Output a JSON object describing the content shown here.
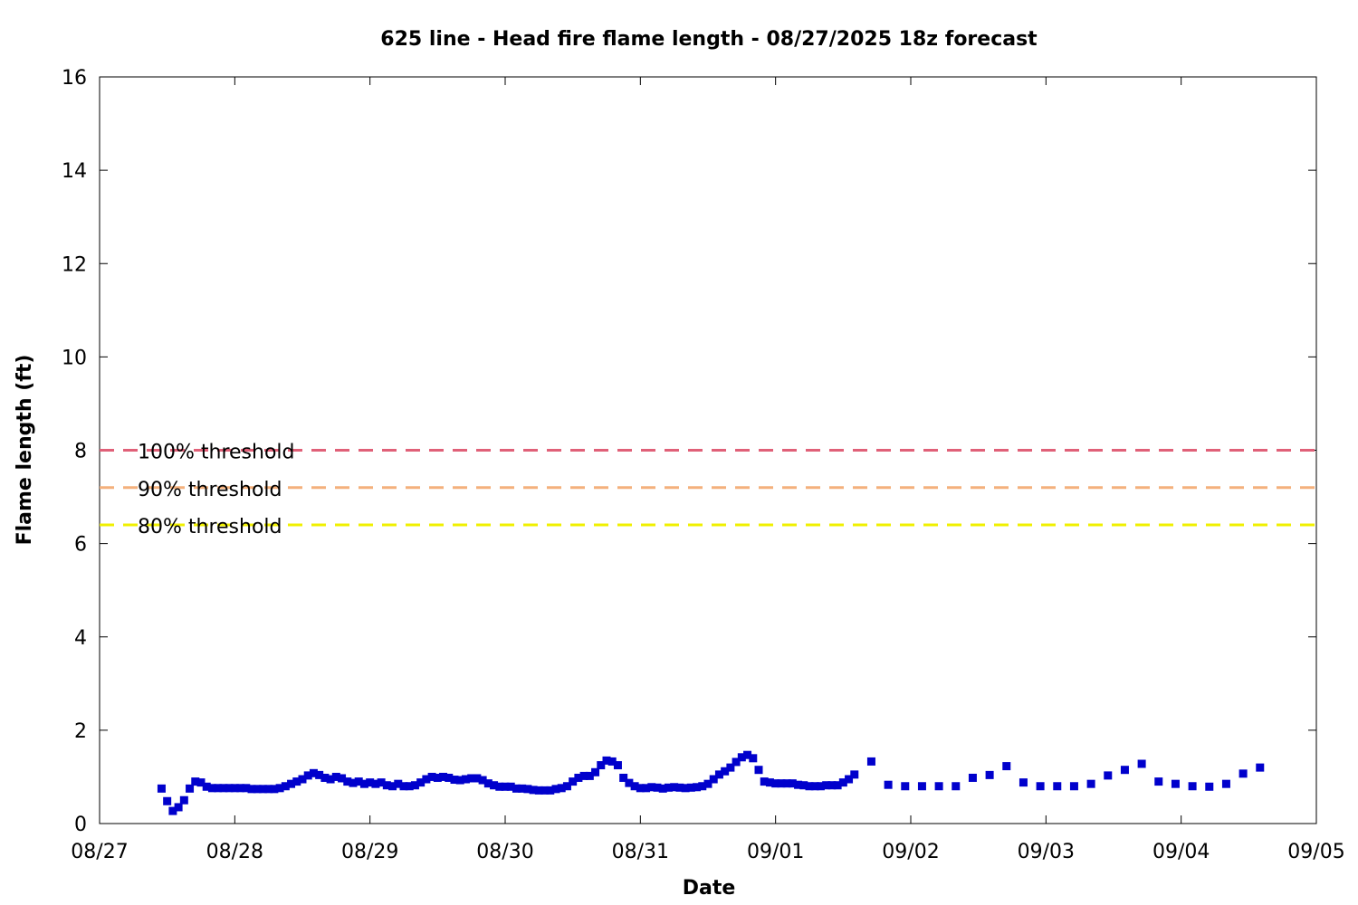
{
  "chart_data": {
    "type": "scatter",
    "title": "625 line - Head fire flame length - 08/27/2025 18z forecast",
    "xlabel": "Date",
    "ylabel": "Flame length (ft)",
    "x_axis": {
      "kind": "date",
      "range": [
        "2025-08-27",
        "2025-09-05"
      ],
      "tick_labels": [
        "08/27",
        "08/28",
        "08/29",
        "08/30",
        "08/31",
        "09/01",
        "09/02",
        "09/03",
        "09/04",
        "09/05"
      ]
    },
    "y_axis": {
      "range": [
        0,
        16
      ],
      "tick_labels": [
        "0",
        "2",
        "4",
        "6",
        "8",
        "10",
        "12",
        "14",
        "16"
      ]
    },
    "grid": false,
    "colors": {
      "points": "#0000cc",
      "threshold_100": "#e06078",
      "threshold_90": "#f4b07c",
      "threshold_80": "#f0f000"
    },
    "thresholds": [
      {
        "label": "100% threshold",
        "value": 8.0
      },
      {
        "label": "90% threshold",
        "value": 7.2
      },
      {
        "label": "80% threshold",
        "value": 6.4
      }
    ],
    "series": [
      {
        "marker": "square",
        "points": [
          [
            "2025-08-27 11:00",
            0.75
          ],
          [
            "2025-08-27 12:00",
            0.48
          ],
          [
            "2025-08-27 13:00",
            0.27
          ],
          [
            "2025-08-27 14:00",
            0.35
          ],
          [
            "2025-08-27 15:00",
            0.5
          ],
          [
            "2025-08-27 16:00",
            0.75
          ],
          [
            "2025-08-27 17:00",
            0.9
          ],
          [
            "2025-08-27 18:00",
            0.88
          ],
          [
            "2025-08-27 19:00",
            0.79
          ],
          [
            "2025-08-27 20:00",
            0.76
          ],
          [
            "2025-08-27 21:00",
            0.76
          ],
          [
            "2025-08-27 22:00",
            0.76
          ],
          [
            "2025-08-27 23:00",
            0.76
          ],
          [
            "2025-08-28 00:00",
            0.76
          ],
          [
            "2025-08-28 01:00",
            0.76
          ],
          [
            "2025-08-28 02:00",
            0.76
          ],
          [
            "2025-08-28 03:00",
            0.74
          ],
          [
            "2025-08-28 04:00",
            0.74
          ],
          [
            "2025-08-28 05:00",
            0.74
          ],
          [
            "2025-08-28 06:00",
            0.74
          ],
          [
            "2025-08-28 07:00",
            0.74
          ],
          [
            "2025-08-28 08:00",
            0.76
          ],
          [
            "2025-08-28 09:00",
            0.8
          ],
          [
            "2025-08-28 10:00",
            0.85
          ],
          [
            "2025-08-28 11:00",
            0.9
          ],
          [
            "2025-08-28 12:00",
            0.95
          ],
          [
            "2025-08-28 13:00",
            1.03
          ],
          [
            "2025-08-28 14:00",
            1.08
          ],
          [
            "2025-08-28 15:00",
            1.04
          ],
          [
            "2025-08-28 16:00",
            0.98
          ],
          [
            "2025-08-28 17:00",
            0.95
          ],
          [
            "2025-08-28 18:00",
            1.0
          ],
          [
            "2025-08-28 19:00",
            0.97
          ],
          [
            "2025-08-28 20:00",
            0.9
          ],
          [
            "2025-08-28 21:00",
            0.87
          ],
          [
            "2025-08-28 22:00",
            0.9
          ],
          [
            "2025-08-28 23:00",
            0.85
          ],
          [
            "2025-08-29 00:00",
            0.88
          ],
          [
            "2025-08-29 01:00",
            0.85
          ],
          [
            "2025-08-29 02:00",
            0.88
          ],
          [
            "2025-08-29 03:00",
            0.82
          ],
          [
            "2025-08-29 04:00",
            0.8
          ],
          [
            "2025-08-29 05:00",
            0.85
          ],
          [
            "2025-08-29 06:00",
            0.8
          ],
          [
            "2025-08-29 07:00",
            0.8
          ],
          [
            "2025-08-29 08:00",
            0.82
          ],
          [
            "2025-08-29 09:00",
            0.88
          ],
          [
            "2025-08-29 10:00",
            0.95
          ],
          [
            "2025-08-29 11:00",
            1.0
          ],
          [
            "2025-08-29 12:00",
            0.98
          ],
          [
            "2025-08-29 13:00",
            1.0
          ],
          [
            "2025-08-29 14:00",
            0.98
          ],
          [
            "2025-08-29 15:00",
            0.94
          ],
          [
            "2025-08-29 16:00",
            0.93
          ],
          [
            "2025-08-29 17:00",
            0.95
          ],
          [
            "2025-08-29 18:00",
            0.97
          ],
          [
            "2025-08-29 19:00",
            0.97
          ],
          [
            "2025-08-29 20:00",
            0.93
          ],
          [
            "2025-08-29 21:00",
            0.86
          ],
          [
            "2025-08-29 22:00",
            0.82
          ],
          [
            "2025-08-29 23:00",
            0.79
          ],
          [
            "2025-08-30 00:00",
            0.79
          ],
          [
            "2025-08-30 01:00",
            0.79
          ],
          [
            "2025-08-30 02:00",
            0.75
          ],
          [
            "2025-08-30 03:00",
            0.75
          ],
          [
            "2025-08-30 04:00",
            0.74
          ],
          [
            "2025-08-30 05:00",
            0.72
          ],
          [
            "2025-08-30 06:00",
            0.71
          ],
          [
            "2025-08-30 07:00",
            0.71
          ],
          [
            "2025-08-30 08:00",
            0.71
          ],
          [
            "2025-08-30 09:00",
            0.74
          ],
          [
            "2025-08-30 10:00",
            0.76
          ],
          [
            "2025-08-30 11:00",
            0.8
          ],
          [
            "2025-08-30 12:00",
            0.9
          ],
          [
            "2025-08-30 13:00",
            0.98
          ],
          [
            "2025-08-30 14:00",
            1.02
          ],
          [
            "2025-08-30 15:00",
            1.02
          ],
          [
            "2025-08-30 16:00",
            1.1
          ],
          [
            "2025-08-30 17:00",
            1.25
          ],
          [
            "2025-08-30 18:00",
            1.35
          ],
          [
            "2025-08-30 19:00",
            1.33
          ],
          [
            "2025-08-30 20:00",
            1.25
          ],
          [
            "2025-08-30 21:00",
            0.98
          ],
          [
            "2025-08-30 22:00",
            0.87
          ],
          [
            "2025-08-30 23:00",
            0.8
          ],
          [
            "2025-08-31 00:00",
            0.76
          ],
          [
            "2025-08-31 01:00",
            0.76
          ],
          [
            "2025-08-31 02:00",
            0.78
          ],
          [
            "2025-08-31 03:00",
            0.77
          ],
          [
            "2025-08-31 04:00",
            0.75
          ],
          [
            "2025-08-31 05:00",
            0.77
          ],
          [
            "2025-08-31 06:00",
            0.78
          ],
          [
            "2025-08-31 07:00",
            0.77
          ],
          [
            "2025-08-31 08:00",
            0.76
          ],
          [
            "2025-08-31 09:00",
            0.77
          ],
          [
            "2025-08-31 10:00",
            0.78
          ],
          [
            "2025-08-31 11:00",
            0.8
          ],
          [
            "2025-08-31 12:00",
            0.85
          ],
          [
            "2025-08-31 13:00",
            0.95
          ],
          [
            "2025-08-31 14:00",
            1.05
          ],
          [
            "2025-08-31 15:00",
            1.12
          ],
          [
            "2025-08-31 16:00",
            1.2
          ],
          [
            "2025-08-31 17:00",
            1.32
          ],
          [
            "2025-08-31 18:00",
            1.42
          ],
          [
            "2025-08-31 19:00",
            1.47
          ],
          [
            "2025-08-31 20:00",
            1.4
          ],
          [
            "2025-08-31 21:00",
            1.15
          ],
          [
            "2025-08-31 22:00",
            0.9
          ],
          [
            "2025-08-31 23:00",
            0.88
          ],
          [
            "2025-09-01 00:00",
            0.86
          ],
          [
            "2025-09-01 01:00",
            0.86
          ],
          [
            "2025-09-01 02:00",
            0.86
          ],
          [
            "2025-09-01 03:00",
            0.86
          ],
          [
            "2025-09-01 04:00",
            0.83
          ],
          [
            "2025-09-01 05:00",
            0.82
          ],
          [
            "2025-09-01 06:00",
            0.8
          ],
          [
            "2025-09-01 07:00",
            0.8
          ],
          [
            "2025-09-01 08:00",
            0.8
          ],
          [
            "2025-09-01 09:00",
            0.82
          ],
          [
            "2025-09-01 10:00",
            0.82
          ],
          [
            "2025-09-01 11:00",
            0.82
          ],
          [
            "2025-09-01 12:00",
            0.88
          ],
          [
            "2025-09-01 13:00",
            0.95
          ],
          [
            "2025-09-01 14:00",
            1.05
          ],
          [
            "2025-09-01 17:00",
            1.33
          ],
          [
            "2025-09-01 20:00",
            0.83
          ],
          [
            "2025-09-01 23:00",
            0.8
          ],
          [
            "2025-09-02 02:00",
            0.8
          ],
          [
            "2025-09-02 05:00",
            0.8
          ],
          [
            "2025-09-02 08:00",
            0.8
          ],
          [
            "2025-09-02 11:00",
            0.98
          ],
          [
            "2025-09-02 14:00",
            1.04
          ],
          [
            "2025-09-02 17:00",
            1.23
          ],
          [
            "2025-09-02 20:00",
            0.88
          ],
          [
            "2025-09-02 23:00",
            0.8
          ],
          [
            "2025-09-03 02:00",
            0.8
          ],
          [
            "2025-09-03 05:00",
            0.8
          ],
          [
            "2025-09-03 08:00",
            0.85
          ],
          [
            "2025-09-03 11:00",
            1.03
          ],
          [
            "2025-09-03 14:00",
            1.15
          ],
          [
            "2025-09-03 17:00",
            1.28
          ],
          [
            "2025-09-03 20:00",
            0.9
          ],
          [
            "2025-09-03 23:00",
            0.85
          ],
          [
            "2025-09-04 02:00",
            0.8
          ],
          [
            "2025-09-04 05:00",
            0.79
          ],
          [
            "2025-09-04 08:00",
            0.85
          ],
          [
            "2025-09-04 11:00",
            1.07
          ],
          [
            "2025-09-04 14:00",
            1.2
          ]
        ]
      }
    ]
  }
}
